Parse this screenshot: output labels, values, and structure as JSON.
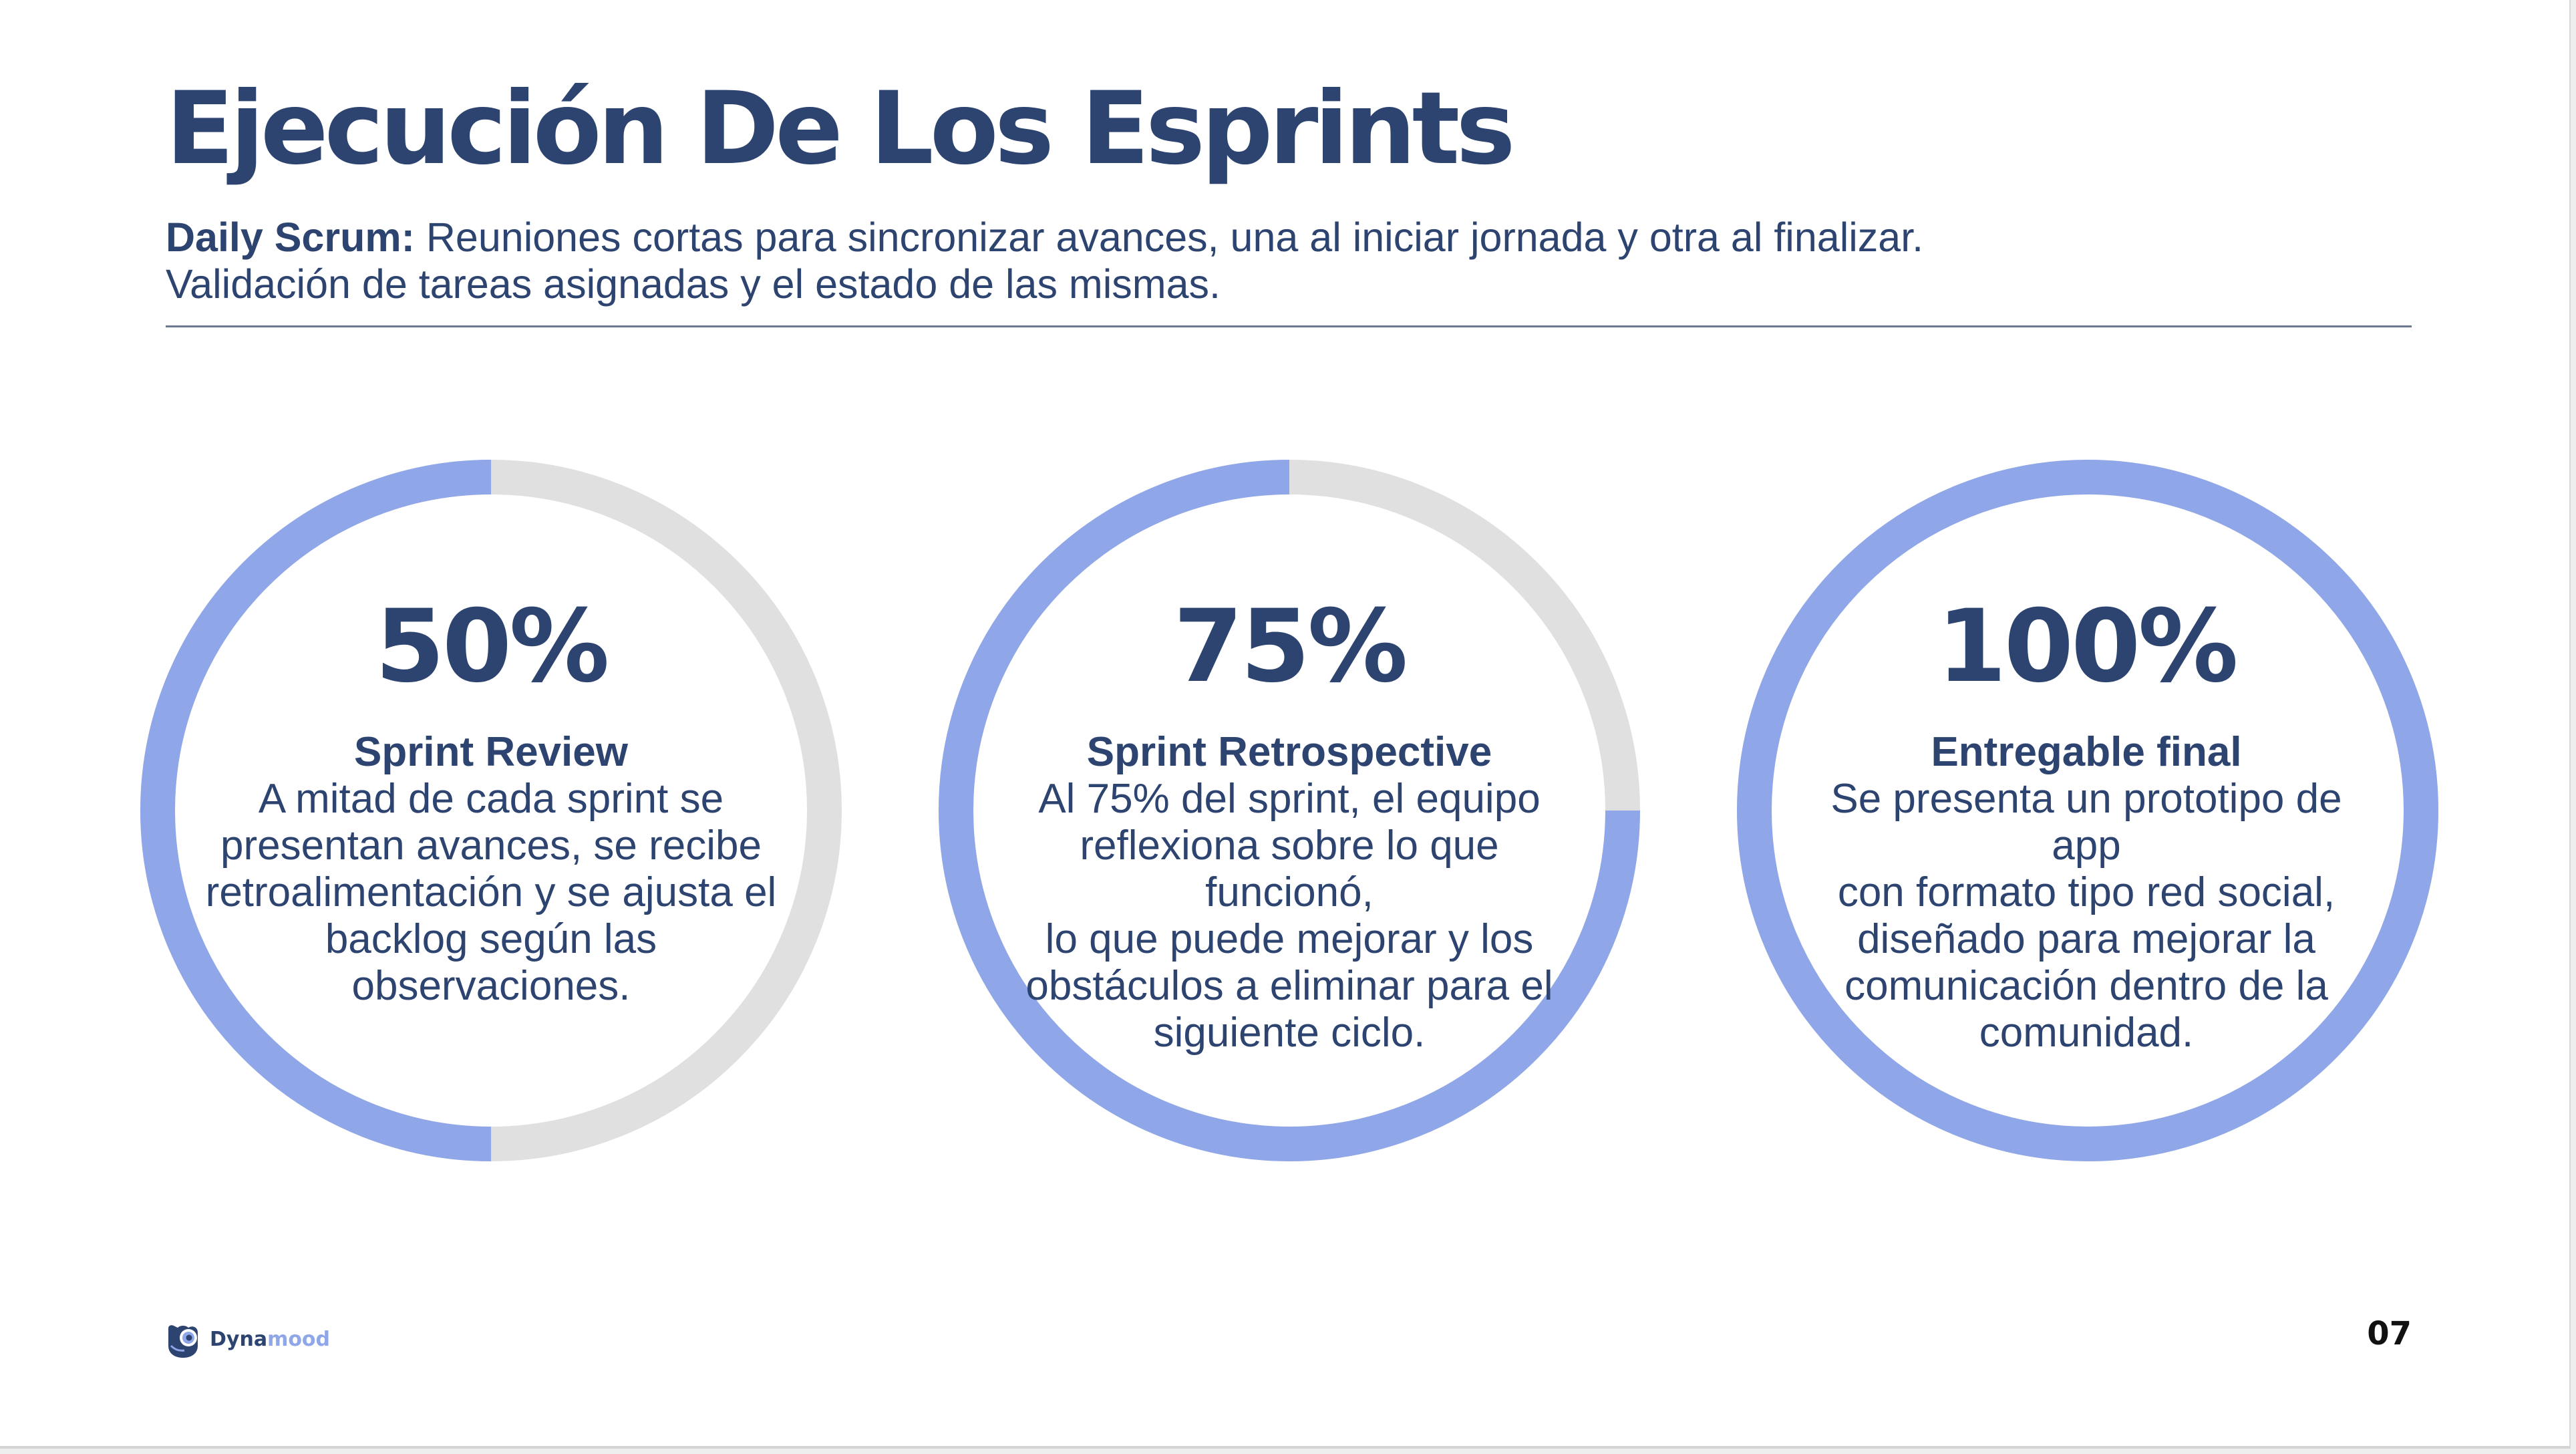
{
  "slide": {
    "title": "Ejecución De Los Esprints",
    "subtitle_lead": "Daily Scrum:",
    "subtitle_rest": " Reuniones cortas para sincronizar avances, una al iniciar jornada y otra al finalizar.",
    "subtitle_line2": "Validación de tareas asignadas y el estado de las mismas.",
    "page_number": "07"
  },
  "logo": {
    "text_dark": "Dyna",
    "text_light": "mood",
    "icon": "owl-logo-icon"
  },
  "colors": {
    "primary_text": "#2d4470",
    "ring_fill": "#8fa6e8",
    "ring_track": "#e0e0e0",
    "divider": "#6a7890"
  },
  "cards": [
    {
      "progress": 0.5,
      "percent_label": "50%",
      "title": "Sprint Review",
      "description": [
        "A mitad de cada sprint se",
        "presentan avances, se recibe",
        "retroalimentación y se ajusta el",
        "backlog según las",
        "observaciones."
      ]
    },
    {
      "progress": 0.75,
      "percent_label": "75%",
      "title": "Sprint Retrospective",
      "description": [
        "Al 75% del sprint, el equipo",
        "reflexiona sobre lo que funcionó,",
        "lo que puede mejorar y los",
        "obstáculos a eliminar para el",
        "siguiente ciclo."
      ]
    },
    {
      "progress": 1.0,
      "percent_label": "100%",
      "title": "Entregable final",
      "description": [
        "Se presenta un prototipo de app",
        "con formato tipo red social,",
        "diseñado para mejorar la",
        "comunicación dentro de la",
        "comunidad."
      ]
    }
  ]
}
